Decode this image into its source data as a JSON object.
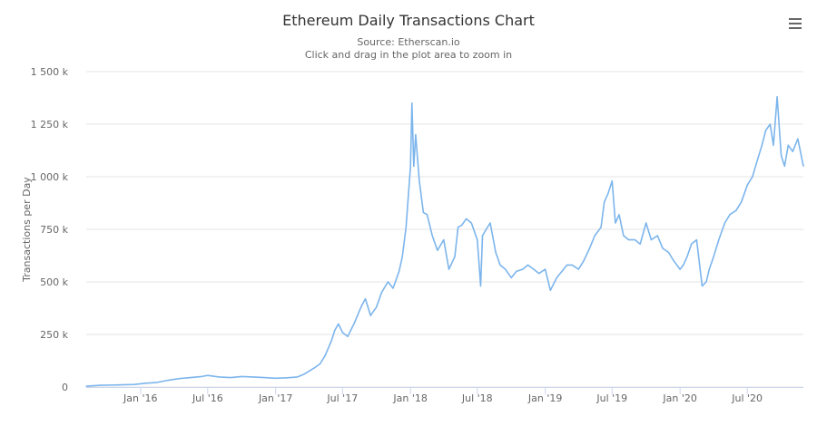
{
  "chart_data": {
    "type": "line",
    "title": "Ethereum Daily Transactions Chart",
    "subtitle_lines": [
      "Source: Etherscan.io",
      "Click and drag in the plot area to zoom in"
    ],
    "ylabel": "Transactions per Day",
    "xlabel": "",
    "ylim": [
      0,
      1500000
    ],
    "y_ticks": [
      {
        "value": 0,
        "label": "0"
      },
      {
        "value": 250000,
        "label": "250 k"
      },
      {
        "value": 500000,
        "label": "500 k"
      },
      {
        "value": 750000,
        "label": "750 k"
      },
      {
        "value": 1000000,
        "label": "1 000 k"
      },
      {
        "value": 1250000,
        "label": "1 250 k"
      },
      {
        "value": 1500000,
        "label": "1 500 k"
      }
    ],
    "xlim": [
      "2015-08-07",
      "2020-11-30"
    ],
    "x_ticks": [
      {
        "date": "2016-01-01",
        "label": "Jan '16"
      },
      {
        "date": "2016-07-01",
        "label": "Jul '16"
      },
      {
        "date": "2017-01-01",
        "label": "Jan '17"
      },
      {
        "date": "2017-07-01",
        "label": "Jul '17"
      },
      {
        "date": "2018-01-01",
        "label": "Jan '18"
      },
      {
        "date": "2018-07-01",
        "label": "Jul '18"
      },
      {
        "date": "2019-01-01",
        "label": "Jan '19"
      },
      {
        "date": "2019-07-01",
        "label": "Jul '19"
      },
      {
        "date": "2020-01-01",
        "label": "Jan '20"
      },
      {
        "date": "2020-07-01",
        "label": "Jul '20"
      }
    ],
    "grid": "horizontal",
    "legend": "none",
    "series": [
      {
        "color": "#7cb5ec",
        "x": [
          "2015-08-07",
          "2015-09-15",
          "2015-11-01",
          "2015-12-15",
          "2016-01-15",
          "2016-02-15",
          "2016-03-15",
          "2016-04-15",
          "2016-05-15",
          "2016-06-15",
          "2016-07-01",
          "2016-08-01",
          "2016-09-01",
          "2016-10-01",
          "2016-11-01",
          "2016-12-01",
          "2017-01-01",
          "2017-02-01",
          "2017-03-01",
          "2017-03-20",
          "2017-04-15",
          "2017-05-01",
          "2017-05-15",
          "2017-06-01",
          "2017-06-10",
          "2017-06-20",
          "2017-07-01",
          "2017-07-15",
          "2017-08-01",
          "2017-08-20",
          "2017-09-01",
          "2017-09-15",
          "2017-10-01",
          "2017-10-15",
          "2017-11-01",
          "2017-11-15",
          "2017-12-01",
          "2017-12-10",
          "2017-12-20",
          "2018-01-01",
          "2018-01-05",
          "2018-01-10",
          "2018-01-15",
          "2018-01-25",
          "2018-02-05",
          "2018-02-15",
          "2018-03-01",
          "2018-03-15",
          "2018-04-01",
          "2018-04-15",
          "2018-05-01",
          "2018-05-10",
          "2018-05-20",
          "2018-06-01",
          "2018-06-15",
          "2018-07-01",
          "2018-07-10",
          "2018-07-15",
          "2018-07-25",
          "2018-08-05",
          "2018-08-20",
          "2018-09-01",
          "2018-09-15",
          "2018-10-01",
          "2018-10-15",
          "2018-11-01",
          "2018-11-15",
          "2018-12-01",
          "2018-12-15",
          "2019-01-01",
          "2019-01-15",
          "2019-02-01",
          "2019-02-15",
          "2019-03-01",
          "2019-03-15",
          "2019-04-01",
          "2019-04-15",
          "2019-05-01",
          "2019-05-15",
          "2019-06-01",
          "2019-06-10",
          "2019-06-20",
          "2019-07-01",
          "2019-07-10",
          "2019-07-20",
          "2019-08-01",
          "2019-08-15",
          "2019-09-01",
          "2019-09-15",
          "2019-10-01",
          "2019-10-15",
          "2019-11-01",
          "2019-11-15",
          "2019-12-01",
          "2019-12-15",
          "2020-01-01",
          "2020-01-10",
          "2020-01-20",
          "2020-02-01",
          "2020-02-15",
          "2020-03-01",
          "2020-03-12",
          "2020-03-20",
          "2020-04-01",
          "2020-04-15",
          "2020-05-01",
          "2020-05-15",
          "2020-06-01",
          "2020-06-15",
          "2020-07-01",
          "2020-07-15",
          "2020-08-01",
          "2020-08-10",
          "2020-08-20",
          "2020-09-01",
          "2020-09-10",
          "2020-09-20",
          "2020-10-01",
          "2020-10-10",
          "2020-10-20",
          "2020-11-01",
          "2020-11-15",
          "2020-11-30"
        ],
        "values": [
          4000,
          8000,
          10000,
          12000,
          18000,
          22000,
          32000,
          40000,
          45000,
          50000,
          55000,
          48000,
          45000,
          50000,
          48000,
          45000,
          42000,
          44000,
          48000,
          62000,
          90000,
          110000,
          150000,
          220000,
          270000,
          300000,
          260000,
          240000,
          300000,
          380000,
          420000,
          340000,
          380000,
          450000,
          500000,
          470000,
          550000,
          620000,
          760000,
          1050000,
          1350000,
          1050000,
          1200000,
          980000,
          830000,
          820000,
          720000,
          650000,
          700000,
          560000,
          620000,
          760000,
          770000,
          800000,
          780000,
          700000,
          480000,
          720000,
          750000,
          780000,
          640000,
          580000,
          560000,
          520000,
          550000,
          560000,
          580000,
          560000,
          540000,
          560000,
          460000,
          520000,
          550000,
          580000,
          580000,
          560000,
          600000,
          660000,
          720000,
          760000,
          880000,
          920000,
          980000,
          780000,
          820000,
          720000,
          700000,
          700000,
          680000,
          780000,
          700000,
          720000,
          660000,
          640000,
          600000,
          560000,
          580000,
          620000,
          680000,
          700000,
          480000,
          500000,
          560000,
          620000,
          700000,
          780000,
          820000,
          840000,
          880000,
          960000,
          1000000,
          1100000,
          1150000,
          1220000,
          1250000,
          1150000,
          1380000,
          1100000,
          1050000,
          1150000,
          1120000,
          1180000,
          1050000
        ]
      }
    ]
  }
}
